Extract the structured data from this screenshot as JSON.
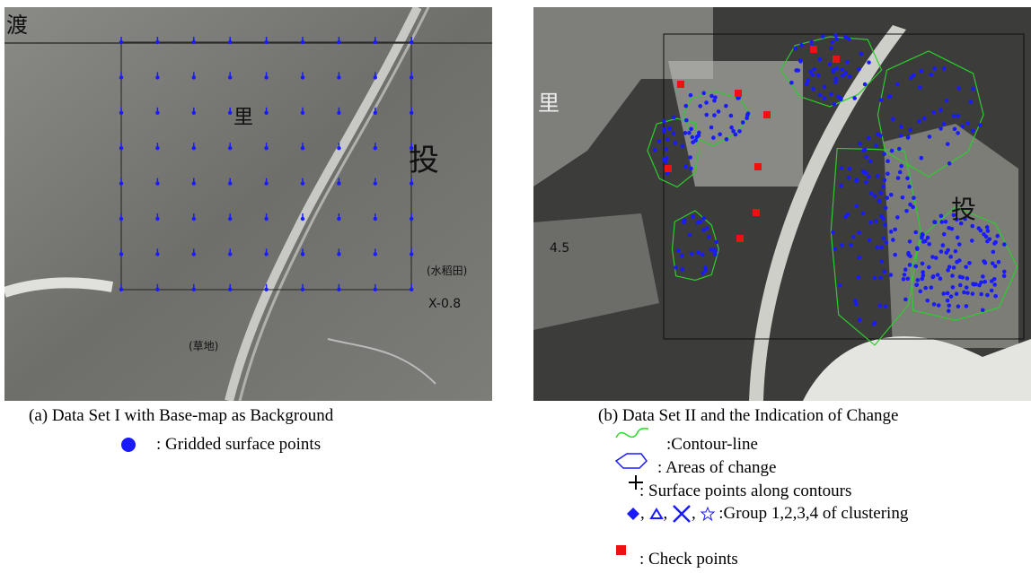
{
  "panel_a": {
    "image_labels": [
      "渡",
      "里",
      "投",
      "(草地)",
      "(水稻田)",
      "X-0.8"
    ],
    "caption": "(a) Data Set I with Base-map as Background",
    "legend": ": Gridded surface points"
  },
  "panel_b": {
    "image_labels": [
      "里",
      "投",
      "4.5"
    ],
    "caption": "(b) Data Set II and the Indication of Change",
    "legend": [
      ":Contour-line",
      ": Areas of change",
      ": Surface points along contours",
      ":Group 1,2,3,4 of clustering",
      ": Check points"
    ],
    "separator": ","
  }
}
